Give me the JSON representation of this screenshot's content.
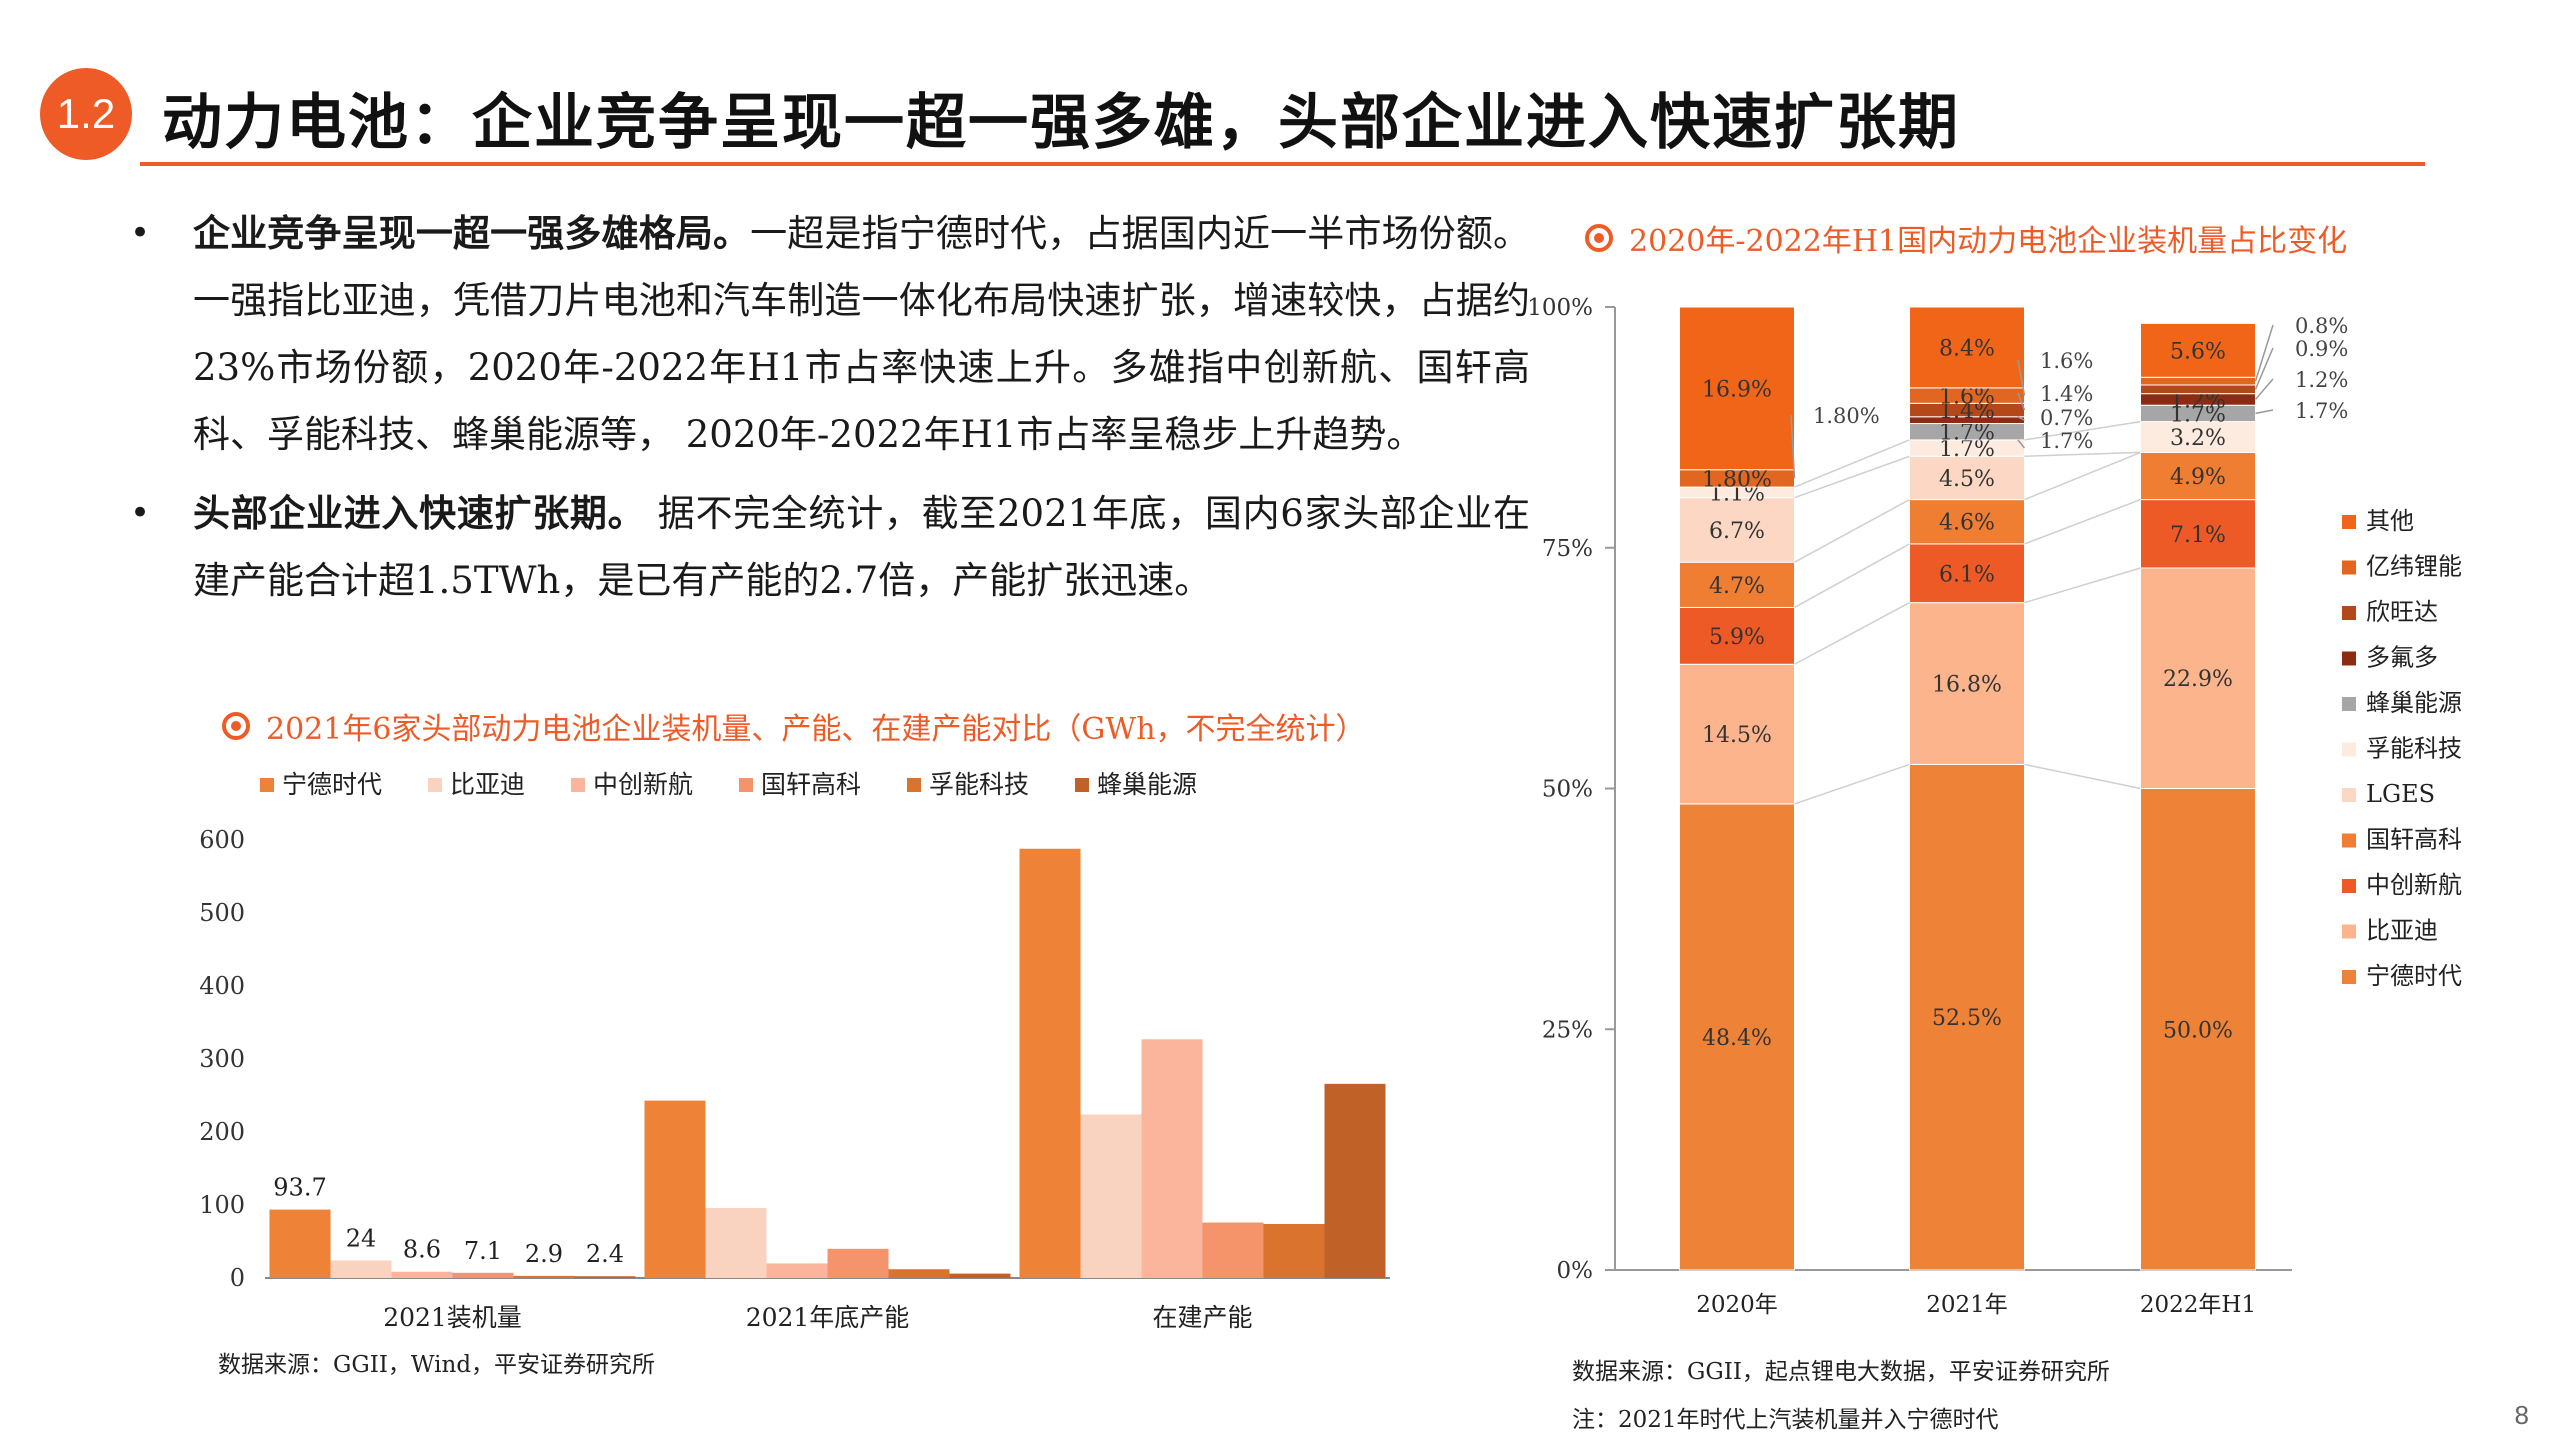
{
  "header": {
    "section": "1.2",
    "title": "动力电池：企业竞争呈现一超一强多雄，头部企业进入快速扩张期"
  },
  "bullets": [
    {
      "bold": "企业竞争呈现一超一强多雄格局。",
      "text": "一超是指宁德时代，占据国内近一半市场份额。一强指比亚迪，凭借刀片电池和汽车制造一体化布局快速扩张，增速较快，占据约23%市场份额，2020年-2022年H1市占率快速上升。多雄指中创新航、国轩高科、孚能科技、蜂巢能源等， 2020年-2022年H1市占率呈稳步上升趋势。"
    },
    {
      "bold": "头部企业进入快速扩张期。",
      "text": " 据不完全统计，截至2021年底，国内6家头部企业在建产能合计超1.5TWh，是已有产能的2.7倍，产能扩张迅速。"
    }
  ],
  "left_chart": {
    "title": "2021年6家头部动力电池企业装机量、产能、在建产能对比（GWh，不完全统计）",
    "source": "数据来源：GGII，Wind，平安证券研究所"
  },
  "right_chart": {
    "title": "2020年-2022年H1国内动力电池企业装机量占比变化",
    "source": "数据来源：GGII，起点锂电大数据，平安证券研究所",
    "note": "注：2021年时代上汽装机量并入宁德时代"
  },
  "page_number": "8",
  "chart_data": [
    {
      "type": "bar",
      "categories": [
        "2021装机量",
        "2021年底产能",
        "在建产能"
      ],
      "series": [
        {
          "name": "宁德时代",
          "color": "#EE8236",
          "values": [
            93.7,
            243,
            588
          ]
        },
        {
          "name": "比亚迪",
          "color": "#FAD2C0",
          "values": [
            24,
            96,
            224
          ]
        },
        {
          "name": "中创新航",
          "color": "#FBB59C",
          "values": [
            8.6,
            20,
            327
          ]
        },
        {
          "name": "国轩高科",
          "color": "#F5936B",
          "values": [
            7.1,
            40,
            76
          ]
        },
        {
          "name": "孚能科技",
          "color": "#D9732E",
          "values": [
            2.9,
            12,
            74
          ]
        },
        {
          "name": "蜂巢能源",
          "color": "#C06128",
          "values": [
            2.4,
            6,
            266
          ]
        }
      ],
      "data_labels": [
        [
          "93.7",
          "24",
          "8.6",
          "7.1",
          "2.9",
          "2.4"
        ]
      ],
      "yticks": [
        "0",
        "100",
        "200",
        "300",
        "400",
        "500",
        "600"
      ],
      "ylim": [
        0,
        600
      ]
    },
    {
      "type": "bar",
      "stacked": true,
      "categories": [
        "2020年",
        "2021年",
        "2022年H1"
      ],
      "series": [
        {
          "name": "宁德时代",
          "color": "#EE8236",
          "values": [
            48.4,
            52.5,
            50.0
          ],
          "labels": [
            "48.4%",
            "52.5%",
            "50.0%"
          ]
        },
        {
          "name": "比亚迪",
          "color": "#FBB48C",
          "values": [
            14.5,
            16.8,
            22.9
          ],
          "labels": [
            "14.5%",
            "16.8%",
            "22.9%"
          ]
        },
        {
          "name": "中创新航",
          "color": "#EE5A26",
          "values": [
            5.9,
            6.1,
            7.1
          ],
          "labels": [
            "5.9%",
            "6.1%",
            "7.1%"
          ]
        },
        {
          "name": "国轩高科",
          "color": "#F07E32",
          "values": [
            4.7,
            4.6,
            4.9
          ],
          "labels": [
            "4.7%",
            "4.6%",
            "4.9%"
          ]
        },
        {
          "name": "LGES",
          "color": "#FCD8C4",
          "values": [
            6.7,
            4.5,
            0
          ],
          "labels": [
            "6.7%",
            "4.5%",
            ""
          ]
        },
        {
          "name": "孚能科技",
          "color": "#FDEBE0",
          "values": [
            1.1,
            1.7,
            3.2
          ],
          "labels": [
            "1.1%",
            "1.7%",
            "3.2%"
          ]
        },
        {
          "name": "蜂巢能源",
          "color": "#A6A6A6",
          "values": [
            0,
            1.7,
            1.7
          ],
          "labels": [
            "",
            "1.7%",
            "1.7%"
          ]
        },
        {
          "name": "多氟多",
          "color": "#8C2A12",
          "values": [
            0,
            0.7,
            1.2
          ],
          "labels": [
            "",
            "0.7%",
            "1.2%"
          ]
        },
        {
          "name": "欣旺达",
          "color": "#B4481A",
          "values": [
            0,
            1.4,
            0.9
          ],
          "labels": [
            "",
            "1.4%",
            "0.9%"
          ]
        },
        {
          "name": "亿纬锂能",
          "color": "#E2661F",
          "values": [
            1.8,
            1.6,
            0.8
          ],
          "labels": [
            "1.80%",
            "1.6%",
            "0.8%"
          ]
        },
        {
          "name": "其他",
          "color": "#F06517",
          "values": [
            16.9,
            8.4,
            5.6
          ],
          "labels": [
            "16.9%",
            "8.4%",
            "5.6%"
          ]
        }
      ],
      "yticks": [
        "0%",
        "25%",
        "50%",
        "75%",
        "100%"
      ],
      "ylim": [
        0,
        100
      ]
    }
  ]
}
